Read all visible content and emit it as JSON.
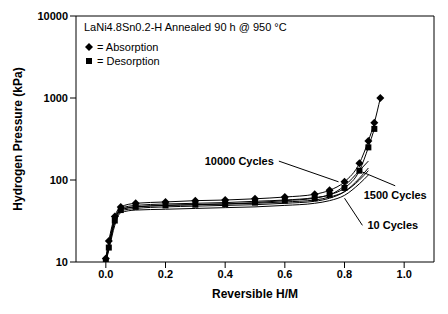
{
  "chart_data": {
    "type": "line",
    "title": "LaNi4.8Sn0.2-H Annealed 90 h @ 950 °C",
    "x_label": "Reversible H/M",
    "y_label": "Hydrogen Pressure (kPa)",
    "log": "y",
    "grid": false,
    "xlim": [
      -0.1,
      1.1
    ],
    "xticks": [
      {
        "value": 0,
        "label": "0.0"
      },
      0.2,
      0.4,
      0.6,
      0.8,
      {
        "value": 1,
        "label": "1.0"
      }
    ],
    "ylim": [
      10,
      10000
    ],
    "yticks": [
      10,
      100,
      1000,
      10000
    ],
    "x": [
      0,
      0.01,
      0.03,
      0.05,
      0.1,
      0.2,
      0.3,
      0.4,
      0.5,
      0.6,
      0.7,
      0.75,
      0.8,
      0.85,
      0.88,
      0.9,
      0.92
    ],
    "series": [
      {
        "name": "10000 Cycles",
        "color": "#000000",
        "marker": "diamond",
        "line_style": "solid",
        "values": [
          11,
          18,
          36,
          47,
          52,
          54,
          56,
          57,
          59,
          62,
          67,
          75,
          95,
          160,
          300,
          500,
          1000
        ]
      },
      {
        "name": "10000 Cycles",
        "color": "#000000",
        "marker": "square",
        "line_style": "solid",
        "values": [
          10,
          15,
          32,
          43,
          47,
          49,
          50,
          51,
          53,
          56,
          60,
          66,
          80,
          130,
          250,
          420,
          null
        ]
      },
      {
        "name": "1500 Cycles",
        "color": "#000000",
        "marker": "none",
        "line_style": "solid",
        "values": [
          11,
          17,
          34,
          45,
          49,
          51,
          52,
          53,
          55,
          57,
          61,
          66,
          85,
          130,
          170,
          null,
          null
        ]
      },
      {
        "name": "1500 Cycles",
        "color": "#000000",
        "marker": "none",
        "line_style": "solid",
        "values": [
          10,
          15,
          30,
          42,
          45,
          47,
          48,
          49,
          50,
          52,
          55,
          60,
          72,
          105,
          140,
          null,
          null
        ]
      },
      {
        "name": "10 Cycles",
        "color": "#000000",
        "marker": "none",
        "line_style": "solid",
        "values": [
          11,
          16,
          32,
          44,
          47,
          49,
          50,
          51,
          52,
          54,
          57,
          62,
          72,
          100,
          130,
          null,
          null
        ]
      },
      {
        "name": "10 Cycles",
        "color": "#000000",
        "marker": "none",
        "line_style": "solid",
        "values": [
          10,
          14,
          28,
          40,
          43,
          44,
          45,
          46,
          47,
          49,
          52,
          56,
          65,
          90,
          115,
          null,
          null
        ]
      }
    ],
    "key": [
      {
        "marker": "diamond",
        "text": "= Absorption"
      },
      {
        "marker": "square",
        "text": "= Desorption"
      }
    ],
    "annotations": [
      {
        "text": "10000 Cycles"
      },
      {
        "text": "1500 Cycles"
      },
      {
        "text": "10 Cycles"
      }
    ]
  }
}
